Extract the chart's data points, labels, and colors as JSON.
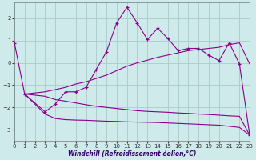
{
  "xlabel": "Windchill (Refroidissement éolien,°C)",
  "background_color": "#ceeaea",
  "grid_color": "#aacccc",
  "line_color": "#8b008b",
  "xlim": [
    0,
    23
  ],
  "ylim": [
    -3.5,
    2.7
  ],
  "xticks": [
    0,
    1,
    2,
    3,
    4,
    5,
    6,
    7,
    8,
    9,
    10,
    11,
    12,
    13,
    14,
    15,
    16,
    17,
    18,
    19,
    20,
    21,
    22,
    23
  ],
  "yticks": [
    -3,
    -2,
    -1,
    0,
    1,
    2
  ],
  "main_x": [
    0,
    1,
    3,
    4,
    5,
    6,
    7,
    8,
    9,
    10,
    11,
    12,
    13,
    14,
    15,
    16,
    17,
    18,
    19,
    20,
    21,
    22,
    23
  ],
  "main_y": [
    0.9,
    -1.4,
    -2.2,
    -1.85,
    -1.3,
    -1.3,
    -1.1,
    -0.3,
    0.5,
    1.8,
    2.5,
    1.8,
    1.05,
    1.55,
    1.1,
    0.55,
    0.65,
    0.65,
    0.35,
    0.1,
    0.9,
    -0.05,
    -3.25
  ],
  "upper_x": [
    1,
    3,
    4,
    5,
    6,
    7,
    8,
    9,
    10,
    11,
    12,
    13,
    14,
    15,
    16,
    17,
    18,
    19,
    20,
    21,
    22,
    23
  ],
  "upper_y": [
    -1.4,
    -1.3,
    -1.2,
    -1.1,
    -0.95,
    -0.85,
    -0.7,
    -0.55,
    -0.35,
    -0.15,
    0.0,
    0.12,
    0.25,
    0.35,
    0.45,
    0.55,
    0.6,
    0.65,
    0.7,
    0.82,
    0.9,
    -0.05
  ],
  "mid_x": [
    1,
    3,
    4,
    5,
    6,
    7,
    8,
    9,
    10,
    11,
    12,
    13,
    14,
    15,
    16,
    17,
    18,
    19,
    20,
    21,
    22,
    23
  ],
  "mid_y": [
    -1.4,
    -1.5,
    -1.65,
    -1.72,
    -1.8,
    -1.88,
    -1.95,
    -2.0,
    -2.05,
    -2.1,
    -2.15,
    -2.18,
    -2.2,
    -2.22,
    -2.25,
    -2.27,
    -2.3,
    -2.32,
    -2.35,
    -2.38,
    -2.4,
    -3.25
  ],
  "low_x": [
    1,
    3,
    4,
    5,
    6,
    7,
    8,
    9,
    10,
    11,
    12,
    13,
    14,
    15,
    16,
    17,
    18,
    19,
    20,
    21,
    22,
    23
  ],
  "low_y": [
    -1.4,
    -2.3,
    -2.5,
    -2.55,
    -2.57,
    -2.58,
    -2.6,
    -2.62,
    -2.63,
    -2.65,
    -2.66,
    -2.67,
    -2.68,
    -2.7,
    -2.72,
    -2.74,
    -2.76,
    -2.78,
    -2.8,
    -2.85,
    -2.9,
    -3.25
  ]
}
